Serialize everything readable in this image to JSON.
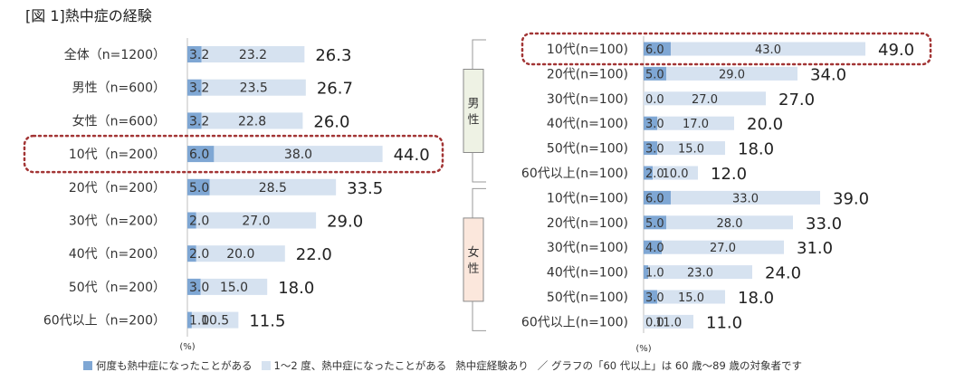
{
  "title": "[図 1]熱中症の経験",
  "colors": {
    "frequent": "#7fa7d4",
    "once_twice": "#d6e2f0",
    "highlight": "#a23535"
  },
  "legend": {
    "frequent": "何度も熱中症になったことがある",
    "once_twice": "1～2 度、熱中症になったことがある",
    "total": "熱中症経験あり",
    "note": "／ グラフの「60 代以上」は 60 歳～89 歳の対象者です"
  },
  "chart_data": [
    {
      "type": "bar",
      "stacked": true,
      "orientation": "horizontal",
      "xlabel": "(%)",
      "categories": [
        "全体（n=1200）",
        "男性（n=600）",
        "女性（n=600）",
        "10代（n=200）",
        "20代（n=200）",
        "30代（n=200）",
        "40代（n=200）",
        "50代（n=200）",
        "60代以上（n=200）"
      ],
      "series": [
        {
          "name": "何度も熱中症になったことがある",
          "values": [
            3.2,
            3.2,
            3.2,
            6.0,
            5.0,
            2.0,
            2.0,
            3.0,
            1.0
          ]
        },
        {
          "name": "1～2 度、熱中症になったことがある",
          "values": [
            23.2,
            23.5,
            22.8,
            38.0,
            28.5,
            27.0,
            20.0,
            15.0,
            10.5
          ]
        }
      ],
      "totals": [
        26.3,
        26.7,
        26.0,
        44.0,
        33.5,
        29.0,
        22.0,
        18.0,
        11.5
      ],
      "highlighted": [
        "10代（n=200）"
      ]
    },
    {
      "type": "bar",
      "stacked": true,
      "orientation": "horizontal",
      "xlabel": "(%)",
      "groups": [
        {
          "label": "男性",
          "categories": [
            "10代(n=100)",
            "20代(n=100)",
            "30代(n=100)",
            "40代(n=100)",
            "50代(n=100)",
            "60代以上(n=100)"
          ]
        },
        {
          "label": "女性",
          "categories": [
            "10代(n=100)",
            "20代(n=100)",
            "30代(n=100)",
            "40代(n=100)",
            "50代(n=100)",
            "60代以上(n=100)"
          ]
        }
      ],
      "series": [
        {
          "name": "何度も熱中症になったことがある",
          "values": [
            6.0,
            5.0,
            0.0,
            3.0,
            3.0,
            2.0,
            6.0,
            5.0,
            4.0,
            1.0,
            3.0,
            0.0
          ]
        },
        {
          "name": "1～2 度、熱中症になったことがある",
          "values": [
            43.0,
            29.0,
            27.0,
            17.0,
            15.0,
            10.0,
            33.0,
            28.0,
            27.0,
            23.0,
            15.0,
            11.0
          ]
        }
      ],
      "totals": [
        49.0,
        34.0,
        27.0,
        20.0,
        18.0,
        12.0,
        39.0,
        33.0,
        31.0,
        24.0,
        18.0,
        11.0
      ],
      "highlighted": [
        "男性 10代(n=100)"
      ]
    }
  ]
}
